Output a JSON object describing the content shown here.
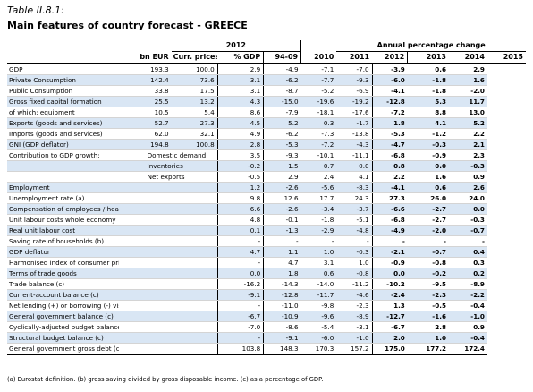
{
  "table_number": "Table II.8.1:",
  "title": "Main features of country forecast - GREECE",
  "header": {
    "group_2012": "2012",
    "group_pct": "Annual percentage change",
    "cols": [
      "bn EUR",
      "Curr. prices",
      "% GDP",
      "94-09",
      "2010",
      "2011",
      "2012",
      "2013",
      "2014",
      "2015"
    ]
  },
  "rows": [
    {
      "label": "GDP",
      "sub": "",
      "shade": false,
      "v": [
        "193.3",
        "100.0",
        "2.9",
        "-4.9",
        "-7.1",
        "-7.0",
        "-3.9",
        "0.6",
        "2.9"
      ]
    },
    {
      "label": "Private Consumption",
      "sub": "",
      "shade": true,
      "v": [
        "142.4",
        "73.6",
        "3.1",
        "-6.2",
        "-7.7",
        "-9.3",
        "-6.0",
        "-1.8",
        "1.6"
      ]
    },
    {
      "label": "Public Consumption",
      "sub": "",
      "shade": false,
      "v": [
        "33.8",
        "17.5",
        "3.1",
        "-8.7",
        "-5.2",
        "-6.9",
        "-4.1",
        "-1.8",
        "-2.0"
      ]
    },
    {
      "label": "Gross fixed capital formation",
      "sub": "",
      "shade": true,
      "v": [
        "25.5",
        "13.2",
        "4.3",
        "-15.0",
        "-19.6",
        "-19.2",
        "-12.8",
        "5.3",
        "11.7"
      ]
    },
    {
      "label": "of which: equipment",
      "sub": "",
      "shade": false,
      "v": [
        "10.5",
        "5.4",
        "8.6",
        "-7.9",
        "-18.1",
        "-17.6",
        "-7.2",
        "8.8",
        "13.0"
      ]
    },
    {
      "label": "Exports (goods and services)",
      "sub": "",
      "shade": true,
      "v": [
        "52.7",
        "27.3",
        "4.5",
        "5.2",
        "0.3",
        "-1.7",
        "1.8",
        "4.1",
        "5.2"
      ]
    },
    {
      "label": "Imports (goods and services)",
      "sub": "",
      "shade": false,
      "v": [
        "62.0",
        "32.1",
        "4.9",
        "-6.2",
        "-7.3",
        "-13.8",
        "-5.3",
        "-1.2",
        "2.2"
      ]
    },
    {
      "label": "GNI (GDP deflator)",
      "sub": "",
      "shade": true,
      "v": [
        "194.8",
        "100.8",
        "2.8",
        "-5.3",
        "-7.2",
        "-4.3",
        "-4.7",
        "-0.3",
        "2.1"
      ]
    },
    {
      "label": "Contribution to GDP growth:",
      "sub": "Domestic demand",
      "shade": false,
      "v": [
        "",
        "",
        "3.5",
        "-9.3",
        "-10.1",
        "-11.1",
        "-6.8",
        "-0.9",
        "2.3"
      ]
    },
    {
      "label": "",
      "sub": "Inventories",
      "shade": true,
      "v": [
        "",
        "",
        "-0.2",
        "1.5",
        "0.7",
        "0.0",
        "0.8",
        "0.0",
        "-0.3"
      ]
    },
    {
      "label": "",
      "sub": "Net exports",
      "shade": false,
      "v": [
        "",
        "",
        "-0.5",
        "2.9",
        "2.4",
        "4.1",
        "2.2",
        "1.6",
        "0.9"
      ]
    },
    {
      "label": "Employment",
      "sub": "",
      "shade": true,
      "v": [
        "",
        "",
        "1.2",
        "-2.6",
        "-5.6",
        "-8.3",
        "-4.1",
        "0.6",
        "2.6"
      ]
    },
    {
      "label": "Unemployment rate (a)",
      "sub": "",
      "shade": false,
      "v": [
        "",
        "",
        "9.8",
        "12.6",
        "17.7",
        "24.3",
        "27.3",
        "26.0",
        "24.0"
      ]
    },
    {
      "label": "Compensation of employees / head",
      "sub": "",
      "shade": true,
      "v": [
        "",
        "",
        "6.6",
        "-2.6",
        "-3.4",
        "-3.7",
        "-6.6",
        "-2.7",
        "0.0"
      ]
    },
    {
      "label": "Unit labour costs whole economy",
      "sub": "",
      "shade": false,
      "v": [
        "",
        "",
        "4.8",
        "-0.1",
        "-1.8",
        "-5.1",
        "-6.8",
        "-2.7",
        "-0.3"
      ]
    },
    {
      "label": "Real unit labour cost",
      "sub": "",
      "shade": true,
      "v": [
        "",
        "",
        "0.1",
        "-1.3",
        "-2.9",
        "-4.8",
        "-4.9",
        "-2.0",
        "-0.7"
      ]
    },
    {
      "label": "Saving rate of households (b)",
      "sub": "",
      "shade": false,
      "v": [
        "",
        "",
        "-",
        "-",
        "-",
        "-",
        "-",
        "-",
        "-"
      ]
    },
    {
      "label": "GDP deflator",
      "sub": "",
      "shade": true,
      "v": [
        "",
        "",
        "4.7",
        "1.1",
        "1.0",
        "-0.3",
        "-2.1",
        "-0.7",
        "0.4"
      ]
    },
    {
      "label": "Harmonised index of consumer prices",
      "sub": "",
      "shade": false,
      "v": [
        "",
        "",
        "-",
        "4.7",
        "3.1",
        "1.0",
        "-0.9",
        "-0.8",
        "0.3"
      ]
    },
    {
      "label": "Terms of trade goods",
      "sub": "",
      "shade": true,
      "v": [
        "",
        "",
        "0.0",
        "1.8",
        "0.6",
        "-0.8",
        "0.0",
        "-0.2",
        "0.2"
      ]
    },
    {
      "label": "Trade balance (c)",
      "sub": "",
      "shade": false,
      "v": [
        "",
        "",
        "-16.2",
        "-14.3",
        "-14.0",
        "-11.2",
        "-10.2",
        "-9.5",
        "-8.9"
      ]
    },
    {
      "label": "Current-account balance (c)",
      "sub": "",
      "shade": true,
      "v": [
        "",
        "",
        "-9.1",
        "-12.8",
        "-11.7",
        "-4.6",
        "-2.4",
        "-2.3",
        "-2.2"
      ]
    },
    {
      "label": "Net lending (+) or borrowing (-) vis-a-vis ROW (c)",
      "sub": "",
      "shade": false,
      "v": [
        "",
        "",
        "-",
        "-11.0",
        "-9.8",
        "-2.3",
        "1.3",
        "-0.5",
        "-0.4"
      ]
    },
    {
      "label": "General government balance (c)",
      "sub": "",
      "shade": true,
      "v": [
        "",
        "",
        "-6.7",
        "-10.9",
        "-9.6",
        "-8.9",
        "-12.7",
        "-1.6",
        "-1.0"
      ]
    },
    {
      "label": "Cyclically-adjusted budget balance (c)",
      "sub": "",
      "shade": false,
      "v": [
        "",
        "",
        "-7.0",
        "-8.6",
        "-5.4",
        "-3.1",
        "-6.7",
        "2.8",
        "0.9"
      ]
    },
    {
      "label": "Structural budget balance (c)",
      "sub": "",
      "shade": true,
      "v": [
        "",
        "",
        "-",
        "-9.1",
        "-6.0",
        "-1.0",
        "2.0",
        "1.0",
        "-0.4"
      ]
    },
    {
      "label": "General government gross debt (c)",
      "sub": "",
      "shade": false,
      "v": [
        "",
        "",
        "103.8",
        "148.3",
        "170.3",
        "157.2",
        "175.0",
        "177.2",
        "172.4"
      ]
    }
  ],
  "footnote": "(a) Eurostat definition.  (b) gross saving divided by gross disposable income.  (c) as a percentage of GDP.",
  "colors": {
    "shade": "#d9e6f4",
    "rule": "#000000"
  }
}
